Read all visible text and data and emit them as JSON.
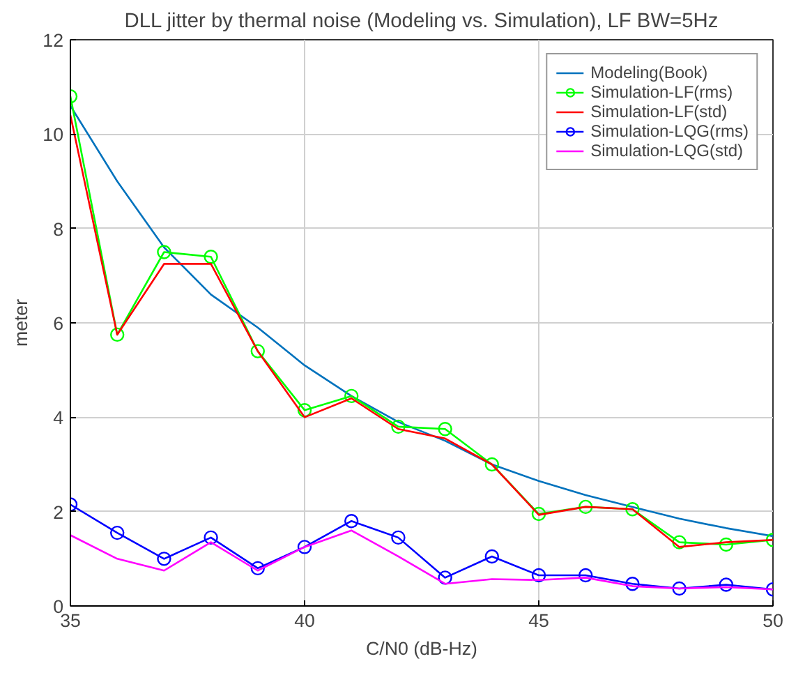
{
  "chart_data": {
    "type": "line",
    "title": "DLL jitter by thermal noise (Modeling vs. Simulation), LF BW=5Hz",
    "xlabel": "C/N0 (dB-Hz)",
    "ylabel": "meter",
    "x": [
      35,
      36,
      37,
      38,
      39,
      40,
      41,
      42,
      43,
      44,
      45,
      46,
      47,
      48,
      49,
      50
    ],
    "series": [
      {
        "name": "Modeling(Book)",
        "color": "#0072bd",
        "marker": "none",
        "values": [
          10.6,
          9.0,
          7.6,
          6.6,
          5.9,
          5.1,
          4.45,
          3.9,
          3.5,
          3.0,
          2.65,
          2.35,
          2.1,
          1.85,
          1.65,
          1.48
        ]
      },
      {
        "name": "Simulation-LF(rms)",
        "color": "#00ff00",
        "marker": "circle",
        "values": [
          10.8,
          5.75,
          7.5,
          7.4,
          5.4,
          4.15,
          4.45,
          3.8,
          3.75,
          3.0,
          1.95,
          2.1,
          2.05,
          1.35,
          1.3,
          1.4
        ]
      },
      {
        "name": "Simulation-LF(std)",
        "color": "#ff0000",
        "marker": "none",
        "values": [
          10.4,
          5.75,
          7.25,
          7.25,
          5.4,
          4.0,
          4.4,
          3.75,
          3.55,
          3.0,
          1.93,
          2.1,
          2.05,
          1.25,
          1.35,
          1.4
        ]
      },
      {
        "name": "Simulation-LQG(rms)",
        "color": "#0000ff",
        "marker": "circle",
        "values": [
          2.15,
          1.55,
          1.0,
          1.45,
          0.8,
          1.25,
          1.8,
          1.45,
          0.6,
          1.05,
          0.65,
          0.65,
          0.47,
          0.37,
          0.45,
          0.35
        ]
      },
      {
        "name": "Simulation-LQG(std)",
        "color": "#ff00ff",
        "marker": "none",
        "values": [
          1.5,
          1.0,
          0.75,
          1.35,
          0.75,
          1.25,
          1.6,
          1.05,
          0.47,
          0.57,
          0.55,
          0.6,
          0.42,
          0.37,
          0.4,
          0.35
        ]
      }
    ],
    "xlim": [
      35,
      50
    ],
    "ylim": [
      0,
      12
    ],
    "xticks": [
      35,
      40,
      45,
      50
    ],
    "yticks": [
      0,
      2,
      4,
      6,
      8,
      10,
      12
    ],
    "grid": true,
    "legend": "top right"
  }
}
